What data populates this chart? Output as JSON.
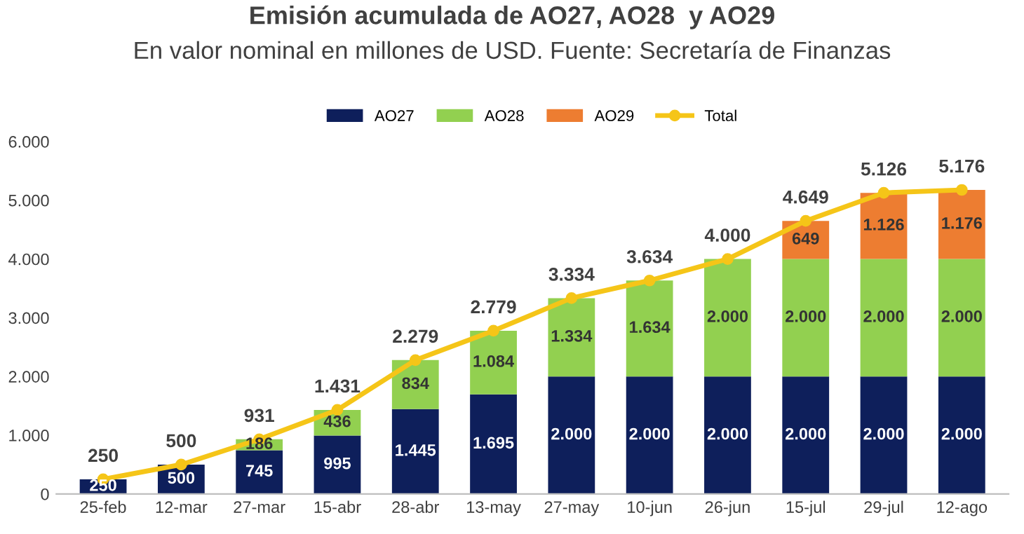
{
  "chart_data": {
    "type": "bar",
    "title": "Emisión acumulada de AO27, AO28  y AO29",
    "subtitle": "En valor nominal en millones de USD. Fuente: Secretaría de Finanzas",
    "categories": [
      "25-feb",
      "12-mar",
      "27-mar",
      "15-abr",
      "28-abr",
      "13-may",
      "27-may",
      "10-jun",
      "26-jun",
      "15-jul",
      "29-jul",
      "12-ago"
    ],
    "stacked": true,
    "legend": "top",
    "grid": false,
    "ylim": [
      0,
      6000
    ],
    "yticks": [
      {
        "value": 0,
        "label": "0"
      },
      {
        "value": 1000,
        "label": "1.000"
      },
      {
        "value": 2000,
        "label": "2.000"
      },
      {
        "value": 3000,
        "label": "3.000"
      },
      {
        "value": 4000,
        "label": "4.000"
      },
      {
        "value": 5000,
        "label": "5.000"
      },
      {
        "value": 6000,
        "label": "6.000"
      }
    ],
    "series": [
      {
        "name": "AO27",
        "color": "#0e1f5b",
        "values": [
          250,
          500,
          745,
          995,
          1445,
          1695,
          2000,
          2000,
          2000,
          2000,
          2000,
          2000
        ],
        "value_labels": [
          "250",
          "500",
          "745",
          "995",
          "1.445",
          "1.695",
          "2.000",
          "2.000",
          "2.000",
          "2.000",
          "2.000",
          "2.000"
        ]
      },
      {
        "name": "AO28",
        "color": "#92d050",
        "values": [
          null,
          null,
          186,
          436,
          834,
          1084,
          1334,
          1634,
          2000,
          2000,
          2000,
          2000
        ],
        "value_labels": [
          null,
          null,
          "186",
          "436",
          "834",
          "1.084",
          "1.334",
          "1.634",
          "2.000",
          "2.000",
          "2.000",
          "2.000"
        ]
      },
      {
        "name": "AO29",
        "color": "#ed7d31",
        "values": [
          null,
          null,
          null,
          null,
          null,
          null,
          null,
          null,
          null,
          649,
          1126,
          1176
        ],
        "value_labels": [
          null,
          null,
          null,
          null,
          null,
          null,
          null,
          null,
          null,
          "649",
          "1.126",
          "1.176"
        ]
      },
      {
        "name": "Total",
        "type": "line",
        "color": "#f5c518",
        "marker": "circle",
        "line_style": "solid",
        "values": [
          250,
          500,
          931,
          1431,
          2279,
          2779,
          3334,
          3634,
          4000,
          4649,
          5126,
          5176
        ],
        "value_labels": [
          "250",
          "500",
          "931",
          "1.431",
          "2.279",
          "2.779",
          "3.334",
          "3.634",
          "4.000",
          "4.649",
          "5.126",
          "5.176"
        ]
      }
    ]
  }
}
